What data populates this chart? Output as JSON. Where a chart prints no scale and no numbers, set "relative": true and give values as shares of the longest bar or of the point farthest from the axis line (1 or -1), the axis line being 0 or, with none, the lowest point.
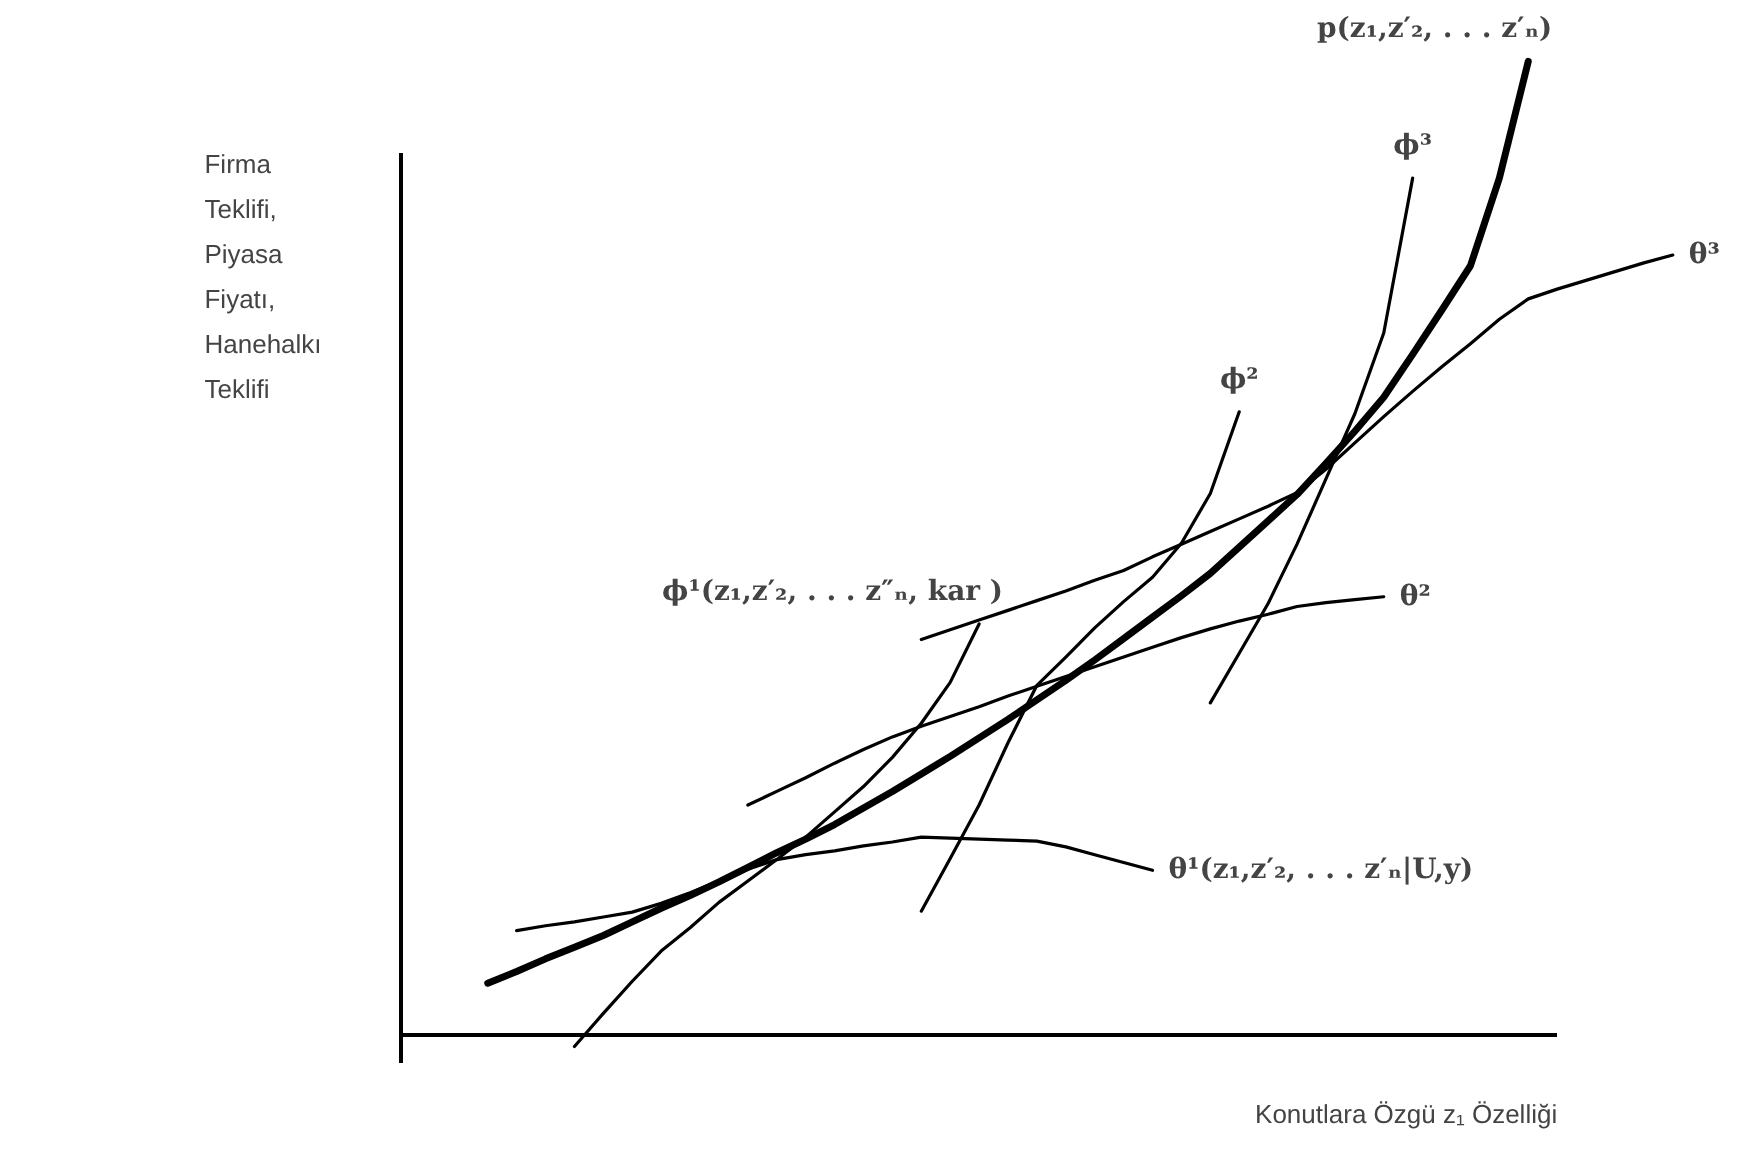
{
  "chart_data": {
    "type": "line",
    "relative": true,
    "xlabel": "Konutlara Özgü z₁ Özelliği",
    "ylabel": "Firma\nTeklifi,\nPiyasa\nFiyatı,\nHanehalkı\nTeklifi",
    "categories": [
      null,
      null,
      null,
      null,
      null,
      null,
      null,
      null,
      null,
      null,
      null,
      null,
      null,
      null,
      null,
      null,
      null,
      null,
      null,
      null,
      null,
      null,
      null,
      null,
      null,
      null,
      null,
      null,
      null,
      null,
      null,
      null,
      null,
      null,
      null,
      null,
      null,
      null,
      null,
      null,
      null,
      null,
      null,
      null,
      null
    ],
    "series": [
      {
        "name": "p(z₁,z′₂, . . . z′ₙ)",
        "color": "#000000",
        "values": [
          null,
          null,
          null,
          0.053,
          0.065,
          0.078,
          0.09,
          0.102,
          0.116,
          0.13,
          0.143,
          0.157,
          0.172,
          0.187,
          0.201,
          0.216,
          0.233,
          0.25,
          0.268,
          0.286,
          0.305,
          0.324,
          0.344,
          0.364,
          0.385,
          0.407,
          0.429,
          0.451,
          0.474,
          0.501,
          0.528,
          0.555,
          0.587,
          0.62,
          0.655,
          0.699,
          0.744,
          0.79,
          0.88,
          1.0,
          null,
          null,
          null,
          null,
          null
        ]
      },
      {
        "name": "ϕ¹(z₁,z′₂, . . . z″ₙ, kar )",
        "color": "#000000",
        "values": [
          null,
          null,
          null,
          null,
          null,
          null,
          -0.012,
          0.022,
          0.055,
          0.086,
          0.11,
          0.136,
          0.158,
          0.18,
          0.203,
          0.229,
          0.255,
          0.285,
          0.32,
          0.362,
          0.422,
          null,
          null,
          null,
          null,
          null,
          null,
          null,
          null,
          null,
          null,
          null,
          null,
          null,
          null,
          null,
          null,
          null,
          null,
          null,
          null,
          null,
          null,
          null,
          null
        ]
      },
      {
        "name": "θ¹(z₁,z′₂, . . . z′ₙ|U,y)",
        "color": "#000000",
        "values": [
          null,
          null,
          null,
          null,
          0.107,
          0.112,
          0.116,
          0.121,
          0.126,
          0.135,
          0.146,
          0.158,
          0.17,
          0.18,
          0.185,
          0.189,
          0.194,
          0.198,
          0.203,
          0.202,
          0.201,
          0.2,
          0.199,
          0.193,
          0.185,
          0.177,
          0.169,
          null,
          null,
          null,
          null,
          null,
          null,
          null,
          null,
          null,
          null,
          null,
          null,
          null,
          null,
          null,
          null,
          null,
          null
        ]
      },
      {
        "name": "ϕ²",
        "color": "#000000",
        "values": [
          null,
          null,
          null,
          null,
          null,
          null,
          null,
          null,
          null,
          null,
          null,
          null,
          null,
          null,
          null,
          null,
          null,
          null,
          0.127,
          0.181,
          0.236,
          0.3,
          0.359,
          0.388,
          0.418,
          0.445,
          0.47,
          0.505,
          0.556,
          0.64,
          null,
          null,
          null,
          null,
          null,
          null,
          null,
          null,
          null,
          null,
          null,
          null,
          null,
          null,
          null
        ]
      },
      {
        "name": "θ²",
        "color": "#000000",
        "values": [
          null,
          null,
          null,
          null,
          null,
          null,
          null,
          null,
          null,
          null,
          null,
          null,
          0.236,
          0.25,
          0.264,
          0.279,
          0.293,
          0.306,
          0.317,
          0.327,
          0.337,
          0.348,
          0.358,
          0.368,
          0.378,
          0.388,
          0.398,
          0.408,
          0.417,
          0.425,
          0.432,
          0.44,
          0.444,
          0.447,
          0.45,
          null,
          null,
          null,
          null,
          null,
          null,
          null,
          null,
          null,
          null
        ]
      },
      {
        "name": "θ³",
        "color": "#000000",
        "values": [
          null,
          null,
          null,
          null,
          null,
          null,
          null,
          null,
          null,
          null,
          null,
          null,
          null,
          null,
          null,
          null,
          null,
          null,
          0.406,
          0.416,
          0.426,
          0.436,
          0.446,
          0.456,
          0.467,
          0.477,
          0.491,
          0.504,
          0.517,
          0.53,
          0.543,
          0.557,
          0.581,
          0.608,
          0.635,
          0.661,
          0.686,
          0.71,
          0.735,
          0.756,
          0.766,
          0.775,
          0.784,
          0.793,
          0.801
        ]
      },
      {
        "name": "ϕ³",
        "color": "#000000",
        "values": [
          null,
          null,
          null,
          null,
          null,
          null,
          null,
          null,
          null,
          null,
          null,
          null,
          null,
          null,
          null,
          null,
          null,
          null,
          null,
          null,
          null,
          null,
          null,
          null,
          null,
          null,
          null,
          null,
          0.341,
          0.392,
          0.443,
          0.504,
          0.571,
          0.638,
          0.721,
          0.88,
          null,
          null,
          null,
          null,
          null,
          null,
          null,
          null,
          null
        ]
      }
    ]
  }
}
